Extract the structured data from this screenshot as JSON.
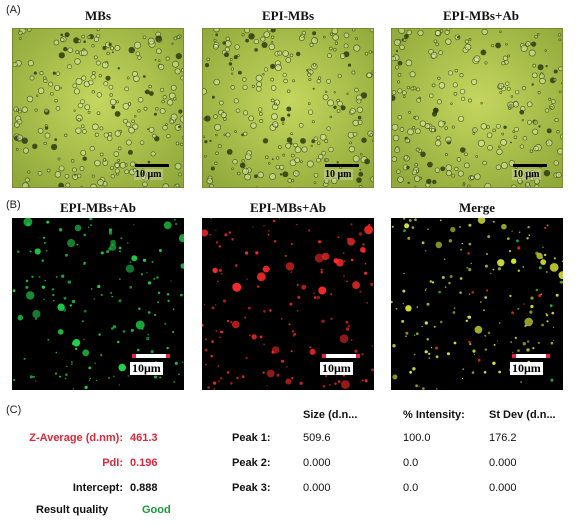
{
  "panel_letters": {
    "a": "(A)",
    "b": "(B)",
    "c": "(C)"
  },
  "row_a_titles": [
    "MBs",
    "EPI-MBs",
    "EPI-MBs+Ab"
  ],
  "row_b_titles": [
    "EPI-MBs+Ab",
    "EPI-MBs+Ab",
    "Merge"
  ],
  "scalebar_a": "10 μm",
  "scalebar_b": "10μm",
  "colors": {
    "brightfield": "#a8c24a",
    "green_channel": "#1fd24a",
    "red_channel": "#ff2a2a",
    "merge": "#d8e83a",
    "accent_red": "#e0263a",
    "accent_green": "#1a9a3a"
  },
  "results": {
    "z_average_label": "Z-Average (d.nm):",
    "z_average_value": "461.3",
    "pdi_label": "PdI:",
    "pdi_value": "0.196",
    "intercept_label": "Intercept:",
    "intercept_value": "0.888",
    "quality_label": "Result quality",
    "quality_value": "Good"
  },
  "peaks": {
    "headers": [
      "Size (d.n...",
      "% Intensity:",
      "St Dev (d.n..."
    ],
    "rows": [
      {
        "label": "Peak 1:",
        "size": "509.6",
        "intensity": "100.0",
        "stdev": "176.2"
      },
      {
        "label": "Peak 2:",
        "size": "0.000",
        "intensity": "0.0",
        "stdev": "0.000"
      },
      {
        "label": "Peak 3:",
        "size": "0.000",
        "intensity": "0.0",
        "stdev": "0.000"
      }
    ]
  }
}
